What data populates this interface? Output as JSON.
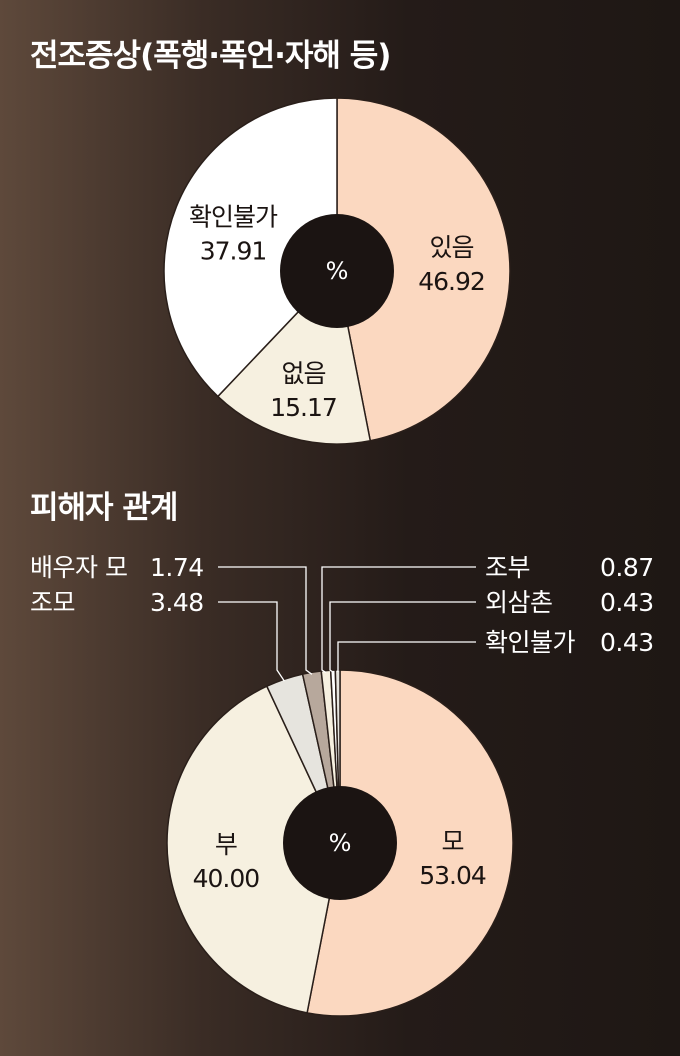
{
  "colors": {
    "peach": "#fbd8c0",
    "cream": "#f6f0e0",
    "white": "#ffffff",
    "light_gray": "#e6e4de",
    "taupe": "#b7a89c",
    "hole": "#1b1412",
    "stroke": "#2a1f1a"
  },
  "chart_data": [
    {
      "type": "pie",
      "title": "전조증상(폭행·폭언·자해 등)",
      "center_label": "%",
      "slices": [
        {
          "label": "있음",
          "value": 46.92,
          "value_text": "46.92",
          "color": "#fbd8c0"
        },
        {
          "label": "없음",
          "value": 15.17,
          "value_text": "15.17",
          "color": "#f6f0e0"
        },
        {
          "label": "확인불가",
          "value": 37.91,
          "value_text": "37.91",
          "color": "#ffffff"
        }
      ]
    },
    {
      "type": "pie",
      "title": "피해자 관계",
      "center_label": "%",
      "slices": [
        {
          "label": "모",
          "value": 53.04,
          "value_text": "53.04",
          "color": "#fbd8c0"
        },
        {
          "label": "부",
          "value": 40.0,
          "value_text": "40.00",
          "color": "#f6f0e0"
        },
        {
          "label": "조모",
          "value": 3.48,
          "value_text": "3.48",
          "color": "#e6e4de"
        },
        {
          "label": "배우자 모",
          "value": 1.74,
          "value_text": "1.74",
          "color": "#b7a89c"
        },
        {
          "label": "조부",
          "value": 0.87,
          "value_text": "0.87",
          "color": "#f6f0e0"
        },
        {
          "label": "외삼촌",
          "value": 0.43,
          "value_text": "0.43",
          "color": "#ffffff"
        },
        {
          "label": "확인불가",
          "value": 0.43,
          "value_text": "0.43",
          "color": "#e6e4de"
        }
      ]
    }
  ]
}
